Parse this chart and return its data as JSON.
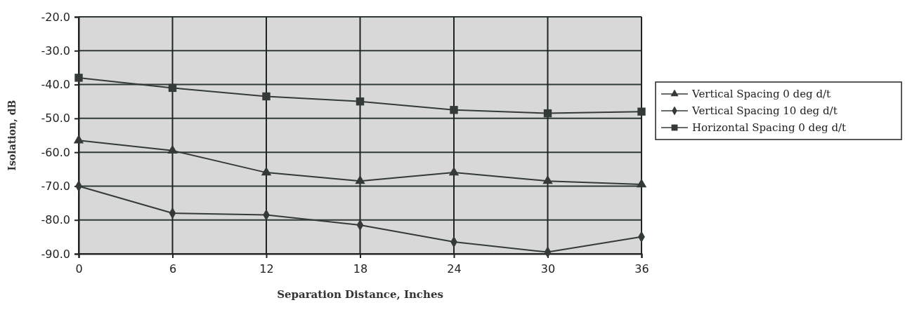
{
  "chart_data": {
    "type": "line",
    "xlabel": "Separation Distance, Inches",
    "ylabel": "Isolation, dB",
    "x": [
      0,
      6,
      12,
      18,
      24,
      30,
      36
    ],
    "series": [
      {
        "name": "Vertical Spacing 0 deg d/t",
        "color": "#333a38",
        "marker": "triangle",
        "values": [
          -56.5,
          -59.5,
          -66,
          -68.5,
          -66,
          -68.5,
          -69.5
        ]
      },
      {
        "name": "Vertical Spacing 10 deg d/t",
        "color": "#333a38",
        "marker": "diamond",
        "values": [
          -70,
          -78,
          -78.5,
          -81.5,
          -86.5,
          -89.5,
          -85
        ]
      },
      {
        "name": "Horizontal Spacing 0 deg d/t",
        "color": "#333a38",
        "marker": "square",
        "values": [
          -38,
          -41,
          -43.5,
          -45,
          -47.5,
          -48.5,
          -48
        ]
      }
    ],
    "xlim": [
      0,
      36
    ],
    "xticks": [
      0,
      6,
      12,
      18,
      24,
      30,
      36
    ],
    "ylim": [
      -90,
      -20
    ],
    "yticks": [
      {
        "value": -90,
        "label": "-90.0"
      },
      {
        "value": -80,
        "label": "-80.0"
      },
      {
        "value": -70,
        "label": "-70.0"
      },
      {
        "value": -60,
        "label": "-60.0"
      },
      {
        "value": -50,
        "label": "-50.0"
      },
      {
        "value": -40,
        "label": "-40.0"
      },
      {
        "value": -30,
        "label": "-30.0"
      },
      {
        "value": -20,
        "label": "-20.0"
      }
    ],
    "grid": true,
    "legend": "right",
    "line_style": "solid"
  }
}
